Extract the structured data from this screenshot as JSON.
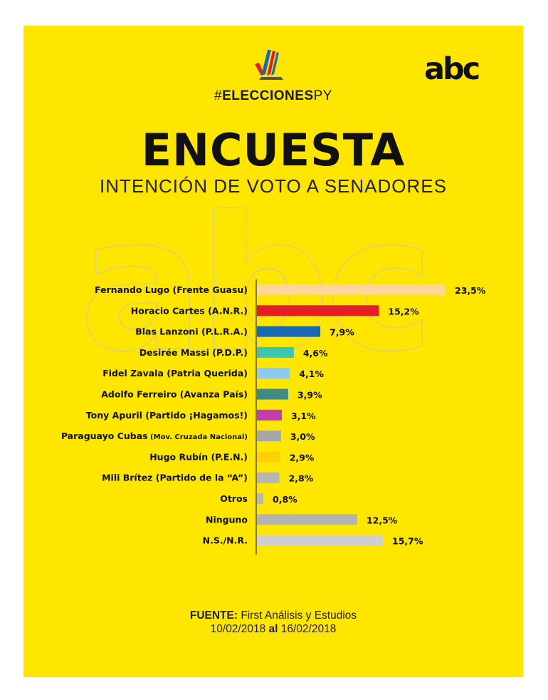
{
  "header": {
    "hashtag_prefix": "#",
    "hashtag_bold": "ELECCIONES",
    "hashtag_suffix": "PY",
    "brand": "abc"
  },
  "title": "ENCUESTA",
  "subtitle": "INTENCIÓN DE VOTO A SENADORES",
  "watermark": "abc",
  "colors": {
    "background": "#ffe600",
    "axis": "#555555"
  },
  "chart_data": {
    "type": "bar",
    "orientation": "horizontal",
    "title": "INTENCIÓN DE VOTO A SENADORES",
    "unit": "%",
    "xlim": [
      0,
      30
    ],
    "categories": [
      {
        "name": "Fernando Lugo (Frente Guasu)",
        "value": 23.5,
        "value_label": "23,5%",
        "color": "#ffd59e"
      },
      {
        "name": "Horacio Cartes (A.N.R.)",
        "value": 15.2,
        "value_label": "15,2%",
        "color": "#e31e24"
      },
      {
        "name": "Blas Lanzoni (P.L.R.A.)",
        "value": 7.9,
        "value_label": "7,9%",
        "color": "#1769b4"
      },
      {
        "name": "Desirée Massi (P.D.P.)",
        "value": 4.6,
        "value_label": "4,6%",
        "color": "#3cc8b0"
      },
      {
        "name": "Fidel Zavala (Patria Querida)",
        "value": 4.1,
        "value_label": "4,1%",
        "color": "#8fcaed"
      },
      {
        "name": "Adolfo Ferreiro (Avanza País)",
        "value": 3.9,
        "value_label": "3,9%",
        "color": "#3f8a86"
      },
      {
        "name": "Tony Apuril (Partido ¡Hagamos!)",
        "value": 3.1,
        "value_label": "3,1%",
        "color": "#c13fb0"
      },
      {
        "name": "Paraguayo Cubas",
        "name_suffix": " (Mov. Cruzada Nacional)",
        "value": 3.0,
        "value_label": "3,0%",
        "color": "#a6a6a6"
      },
      {
        "name": "Hugo Rubín (P.E.N.)",
        "value": 2.9,
        "value_label": "2,9%",
        "color": "#ffcf0a"
      },
      {
        "name": "Mili Brítez  (Partido de la “A”)",
        "value": 2.8,
        "value_label": "2,8%",
        "color": "#b5b5b5"
      },
      {
        "name": "Otros",
        "value": 0.8,
        "value_label": "0,8%",
        "color": "#b8b8b8"
      },
      {
        "name": "Ninguno",
        "value": 12.5,
        "value_label": "12,5%",
        "color": "#b3b3b3"
      },
      {
        "name": "N.S./N.R.",
        "value": 15.7,
        "value_label": "15,7%",
        "color": "#cfcfcf"
      }
    ]
  },
  "source": {
    "label": "FUENTE:",
    "text": " First Análisis y Estudios",
    "date_from": "10/02/2018",
    "connector": " al ",
    "date_to": "16/02/2018"
  }
}
